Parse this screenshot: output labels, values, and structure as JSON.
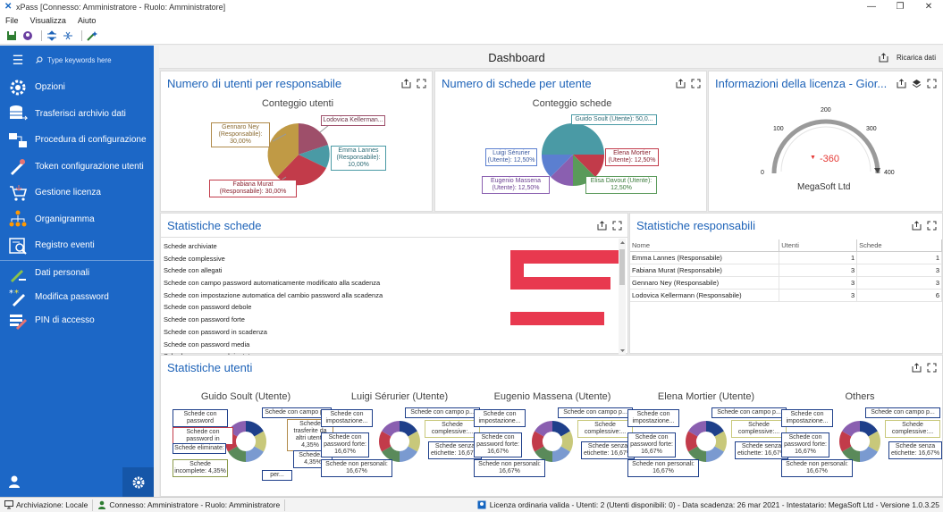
{
  "window": {
    "title": "xPass [Connesso: Amministratore - Ruolo: Amministratore]"
  },
  "menu": [
    "File",
    "Visualizza",
    "Aiuto"
  ],
  "sidebar": {
    "search_placeholder": "Type keywords here",
    "items": [
      {
        "label": "Opzioni",
        "icon": "options-icon"
      },
      {
        "label": "Trasferisci archivio dati",
        "icon": "database-transfer-icon"
      },
      {
        "label": "Procedura di configurazione",
        "icon": "wizard-icon"
      },
      {
        "label": "Token configurazione utenti",
        "icon": "token-icon"
      },
      {
        "label": "Gestione licenza",
        "icon": "cart-icon"
      },
      {
        "label": "Organigramma",
        "icon": "org-chart-icon"
      },
      {
        "label": "Registro eventi",
        "icon": "event-log-icon"
      },
      {
        "label": "Dati personali",
        "icon": "personal-data-icon"
      },
      {
        "label": "Modifica password",
        "icon": "password-icon"
      },
      {
        "label": "PIN di accesso",
        "icon": "pin-icon"
      }
    ]
  },
  "dashboard": {
    "title": "Dashboard",
    "reload_label": "Ricarica dati"
  },
  "panels": {
    "users_per_manager": {
      "title": "Numero di utenti per responsabile",
      "chart_title": "Conteggio utenti",
      "labels": [
        "Gennaro Ney (Responsabile): 30,00%",
        "Lodovica Kellerman...",
        "Emma Lannes (Responsabile): 10,00%",
        "Fabiana Murat (Responsabile): 30,00%"
      ]
    },
    "cards_per_user": {
      "title": "Numero di schede per utente",
      "chart_title": "Conteggio schede",
      "labels": [
        "Guido Soult (Utente): 50,0...",
        "Luigi Sérurier (Utente): 12,50%",
        "Elena Mortier (Utente): 12,50%",
        "Eugenio Massena (Utente): 12,50%",
        "Elisa Davout (Utente): 12,50%"
      ]
    },
    "license": {
      "title": "Informazioni della licenza - Gior...",
      "value": "-360",
      "company": "MegaSoft Ltd",
      "ticks": [
        "0",
        "100",
        "200",
        "300",
        "400"
      ]
    },
    "card_stats": {
      "title": "Statistiche schede",
      "rows": [
        "Schede archiviate",
        "Schede complessive",
        "Schede con allegati",
        "Schede con campo password automaticamente modificato alla scadenza",
        "Schede con impostazione automatica del cambio password alla scadenza",
        "Schede con password debole",
        "Schede con password forte",
        "Schede con password in scadenza",
        "Schede con password media",
        "Schede con password ripetuta"
      ]
    },
    "manager_stats": {
      "title": "Statistiche responsabili",
      "headers": [
        "Nome",
        "Utenti",
        "Schede"
      ],
      "rows": [
        [
          "Emma Lannes (Responsabile)",
          "1",
          "1"
        ],
        [
          "Fabiana Murat (Responsabile)",
          "3",
          "3"
        ],
        [
          "Gennaro Ney (Responsabile)",
          "3",
          "3"
        ],
        [
          "Lodovica Kellermann (Responsabile)",
          "3",
          "6"
        ]
      ]
    },
    "user_stats": {
      "title": "Statistiche utenti",
      "charts": [
        {
          "title": "Guido Soult (Utente)"
        },
        {
          "title": "Luigi Sérurier (Utente)"
        },
        {
          "title": "Eugenio Massena (Utente)"
        },
        {
          "title": "Elena Mortier (Utente)"
        },
        {
          "title": "Others"
        }
      ],
      "guido_labels": [
        "Schede con password",
        "Schede con password in",
        "Schede eliminate:",
        "Schede incomplete: 4,35%",
        "Schede con campo p...",
        "Schede trasferite da altri utenti: 4,35%",
        "Schede...: 4,35%",
        "per..."
      ],
      "std_labels": [
        "Schede con impostazione...",
        "Schede con password forte: 16,67%",
        "Schede non personali: 16,67%",
        "Schede con campo p...",
        "Schede complessive:...",
        "Schede senza etichette: 16,67%"
      ]
    }
  },
  "status": {
    "archive": "Archiviazione: Locale",
    "connected": "Connesso: Amministratore - Ruolo: Amministratore",
    "license": "Licenza ordinaria valida - Utenti: 2 (Utenti disponibili: 0) - Data scadenza: 26 mar 2021 - Intestatario: MegaSoft Ltd - Versione 1.0.3.25"
  },
  "colors": {
    "sidebar": "#1c67c6",
    "title_blue": "#1e63b8",
    "bar_red": "#e8394f"
  }
}
